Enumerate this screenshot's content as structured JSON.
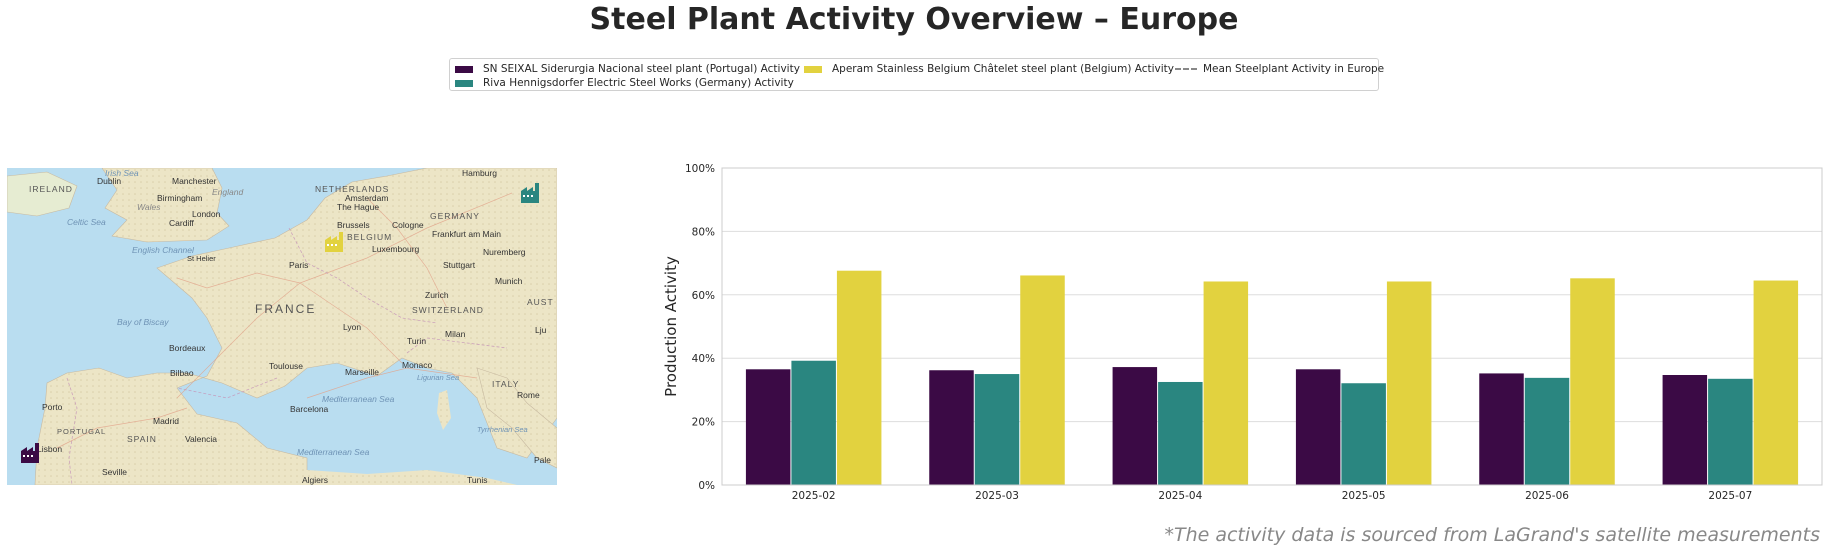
{
  "title": "Steel Plant Activity Overview – Europe",
  "legend": {
    "items": [
      {
        "label": "SN SEIXAL Siderurgia Nacional steel plant (Portugal) Activity",
        "color": "#3b0a45"
      },
      {
        "label": "Riva Hennigsdorfer Electric Steel Works (Germany) Activity",
        "color": "#2a8680"
      },
      {
        "label": "Aperam Stainless Belgium Châtelet steel plant (Belgium) Activity",
        "color": "#e2d23f"
      },
      {
        "label": "Mean Steelplant Activity in Europe",
        "color": "#888888"
      }
    ]
  },
  "map": {
    "labels": {
      "irish_sea": "Irish Sea",
      "ireland": "IRELAND",
      "dublin": "Dublin",
      "manchester": "Manchester",
      "england": "England",
      "wales": "Wales",
      "birmingham": "Birmingham",
      "cardiff": "Cardiff",
      "london": "London",
      "celtic_sea": "Celtic Sea",
      "english_channel": "English Channel",
      "st_helier": "St Helier",
      "netherlands": "NETHERLANDS",
      "amsterdam": "Amsterdam",
      "the_hague": "The Hague",
      "hamburg": "Hamburg",
      "germany": "GERMANY",
      "brussels": "Brussels",
      "cologne": "Cologne",
      "frankfurt": "Frankfurt am Main",
      "belgium": "BELGIUM",
      "luxembourg": "Luxembourg",
      "nuremberg": "Nuremberg",
      "paris": "Paris",
      "stuttgart": "Stuttgart",
      "munich": "Munich",
      "zurich": "Zurich",
      "france": "FRANCE",
      "switzerland": "SWITZERLAND",
      "austria": "AUST",
      "bay_of_biscay": "Bay of Biscay",
      "lyon": "Lyon",
      "milan": "Milan",
      "turin": "Turin",
      "ljubljana": "Lju",
      "bordeaux": "Bordeaux",
      "toulouse": "Toulouse",
      "marseille": "Marseille",
      "monaco": "Monaco",
      "bilbao": "Bilbao",
      "ligurian_sea": "Ligurian Sea",
      "italy": "ITALY",
      "porto": "Porto",
      "portugal": "PORTUGAL",
      "madrid": "Madrid",
      "barcelona": "Barcelona",
      "spain": "SPAIN",
      "valencia": "Valencia",
      "lisbon": "Lisbon",
      "rome": "Rome",
      "med_sea_1": "Mediterranean Sea",
      "med_sea_2": "Mediterranean Sea",
      "tyrrhenian_sea": "Tyrrhenian Sea",
      "seville": "Seville",
      "algiers": "Algiers",
      "tunis": "Tunis",
      "palermo": "Pale"
    },
    "markers": [
      {
        "plant": "SN SEIXAL Siderurgia Nacional",
        "color": "#3b0a45",
        "icon": "factory-icon"
      },
      {
        "plant": "Riva Hennigsdorfer Electric Steel Works",
        "color": "#2a8680",
        "icon": "factory-icon"
      },
      {
        "plant": "Aperam Stainless Belgium Châtelet",
        "color": "#e2d23f",
        "icon": "factory-icon"
      }
    ]
  },
  "chart_data": {
    "type": "bar",
    "categories": [
      "2025-02",
      "2025-03",
      "2025-04",
      "2025-05",
      "2025-06",
      "2025-07"
    ],
    "series": [
      {
        "name": "SN SEIXAL Siderurgia Nacional steel plant (Portugal) Activity",
        "color": "#3b0a45",
        "values": [
          36.5,
          36.2,
          37.2,
          36.5,
          35.2,
          34.7
        ]
      },
      {
        "name": "Riva Hennigsdorfer Electric Steel Works (Germany) Activity",
        "color": "#2a8680",
        "values": [
          39.2,
          35.0,
          32.5,
          32.1,
          33.8,
          33.5
        ]
      },
      {
        "name": "Aperam Stainless Belgium Châtelet steel plant (Belgium) Activity",
        "color": "#e2d23f",
        "values": [
          67.6,
          66.1,
          64.2,
          64.2,
          65.2,
          64.5
        ]
      }
    ],
    "ylabel": "Production Activity",
    "ylim": [
      0,
      100
    ],
    "yticks": [
      "0%",
      "20%",
      "40%",
      "60%",
      "80%",
      "100%"
    ],
    "ytick_values": [
      0,
      20,
      40,
      60,
      80,
      100
    ],
    "grid": true
  },
  "footnote": "*The activity data is sourced from LaGrand's satellite measurements"
}
